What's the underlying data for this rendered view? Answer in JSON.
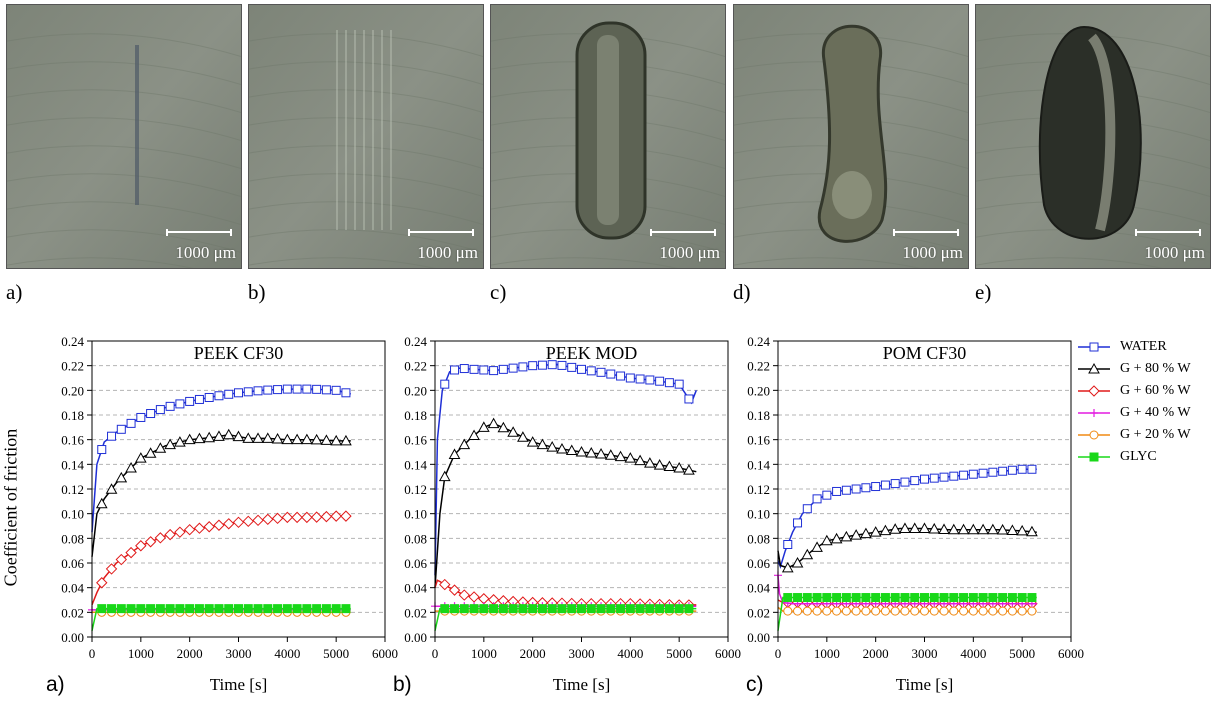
{
  "photos": [
    {
      "letter": "a)",
      "scale_label": "1000 μm",
      "mark": "scratch"
    },
    {
      "letter": "b)",
      "scale_label": "1000 μm",
      "mark": "faint"
    },
    {
      "letter": "c)",
      "scale_label": "1000 μm",
      "mark": "capsule"
    },
    {
      "letter": "d)",
      "scale_label": "1000 μm",
      "mark": "peanut"
    },
    {
      "letter": "e)",
      "scale_label": "1000 μm",
      "mark": "oval"
    }
  ],
  "y_axis_label": "Coefficient of friction",
  "legend": [
    {
      "name": "WATER",
      "color": "#1f2fd6",
      "marker": "square-open"
    },
    {
      "name": "G + 80 % W",
      "color": "#000000",
      "marker": "triangle-open"
    },
    {
      "name": "G + 60 % W",
      "color": "#e01a1a",
      "marker": "diamond-open"
    },
    {
      "name": "G + 40 % W",
      "color": "#e31ce0",
      "marker": "plus"
    },
    {
      "name": "G + 20 % W",
      "color": "#f08a14",
      "marker": "circle-open"
    },
    {
      "name": "GLYC",
      "color": "#18d818",
      "marker": "square-filled"
    }
  ],
  "chart_data": [
    {
      "type": "line",
      "letter": "a)",
      "title": "PEEK CF30",
      "xlabel": "Time [s]",
      "ylabel": "Coefficient of friction",
      "xlim": [
        0,
        6000
      ],
      "ylim": [
        0,
        0.24
      ],
      "xticks": [
        "0",
        "1000",
        "2000",
        "3000",
        "4000",
        "5000",
        "6000"
      ],
      "yticks": [
        "0.00",
        "0.02",
        "0.04",
        "0.06",
        "0.08",
        "0.10",
        "0.12",
        "0.14",
        "0.16",
        "0.18",
        "0.20",
        "0.22",
        "0.24"
      ],
      "grid": "horizontal dashed",
      "series": [
        {
          "name": "WATER",
          "x": [
            0,
            100,
            250,
            500,
            1000,
            1500,
            2000,
            2500,
            3000,
            3500,
            4000,
            4500,
            5000,
            5300
          ],
          "y": [
            0.085,
            0.14,
            0.158,
            0.166,
            0.178,
            0.186,
            0.191,
            0.195,
            0.198,
            0.2,
            0.201,
            0.201,
            0.2,
            0.197
          ]
        },
        {
          "name": "G + 80 % W",
          "x": [
            0,
            100,
            250,
            500,
            1000,
            1500,
            2000,
            2500,
            2800,
            3200,
            3600,
            4000,
            4500,
            5000,
            5300
          ],
          "y": [
            0.065,
            0.1,
            0.112,
            0.125,
            0.145,
            0.155,
            0.16,
            0.162,
            0.164,
            0.161,
            0.161,
            0.16,
            0.16,
            0.159,
            0.159
          ]
        },
        {
          "name": "G + 60 % W",
          "x": [
            0,
            100,
            250,
            500,
            1000,
            1500,
            2000,
            2500,
            3000,
            3500,
            4000,
            4500,
            5000,
            5300
          ],
          "y": [
            0.026,
            0.036,
            0.048,
            0.06,
            0.074,
            0.082,
            0.087,
            0.09,
            0.093,
            0.095,
            0.097,
            0.097,
            0.098,
            0.098
          ]
        },
        {
          "name": "G + 40 % W",
          "x": [
            0,
            200,
            1000,
            2000,
            3000,
            4000,
            5000,
            5300
          ],
          "y": [
            0.022,
            0.022,
            0.022,
            0.022,
            0.022,
            0.022,
            0.022,
            0.022
          ]
        },
        {
          "name": "G + 20 % W",
          "x": [
            0,
            200,
            1000,
            2000,
            3000,
            4000,
            5000,
            5300
          ],
          "y": [
            0.02,
            0.02,
            0.02,
            0.02,
            0.02,
            0.02,
            0.02,
            0.02
          ]
        },
        {
          "name": "GLYC",
          "x": [
            0,
            100,
            200,
            1000,
            2000,
            3000,
            4000,
            5000,
            5300
          ],
          "y": [
            0.005,
            0.023,
            0.023,
            0.023,
            0.023,
            0.023,
            0.023,
            0.023,
            0.023
          ]
        }
      ]
    },
    {
      "type": "line",
      "letter": "b)",
      "title": "PEEK MOD",
      "xlabel": "Time [s]",
      "ylabel": "",
      "xlim": [
        0,
        6000
      ],
      "ylim": [
        0,
        0.24
      ],
      "xticks": [
        "0",
        "1000",
        "2000",
        "3000",
        "4000",
        "5000",
        "6000"
      ],
      "yticks": [
        "0.00",
        "0.02",
        "0.04",
        "0.06",
        "0.08",
        "0.10",
        "0.12",
        "0.14",
        "0.16",
        "0.18",
        "0.20",
        "0.22",
        "0.24"
      ],
      "grid": "horizontal dashed",
      "series": [
        {
          "name": "WATER",
          "x": [
            0,
            50,
            150,
            300,
            500,
            800,
            1200,
            1600,
            2000,
            2500,
            3000,
            3500,
            4000,
            4500,
            5000,
            5250,
            5350
          ],
          "y": [
            0.05,
            0.16,
            0.2,
            0.215,
            0.218,
            0.217,
            0.216,
            0.218,
            0.22,
            0.221,
            0.217,
            0.214,
            0.21,
            0.208,
            0.205,
            0.19,
            0.2
          ]
        },
        {
          "name": "G + 80 % W",
          "x": [
            0,
            100,
            200,
            400,
            700,
            1000,
            1200,
            1500,
            2000,
            2500,
            3000,
            3500,
            4000,
            4500,
            5000,
            5350
          ],
          "y": [
            0.04,
            0.1,
            0.13,
            0.148,
            0.16,
            0.17,
            0.173,
            0.168,
            0.158,
            0.153,
            0.15,
            0.148,
            0.145,
            0.14,
            0.137,
            0.134
          ]
        },
        {
          "name": "G + 60 % W",
          "x": [
            0,
            50,
            100,
            300,
            600,
            1000,
            1500,
            2000,
            3000,
            4000,
            5000,
            5350
          ],
          "y": [
            0.04,
            0.046,
            0.045,
            0.04,
            0.034,
            0.031,
            0.029,
            0.028,
            0.027,
            0.027,
            0.026,
            0.026
          ]
        },
        {
          "name": "G + 40 % W",
          "x": [
            0,
            200,
            1000,
            2000,
            3000,
            4000,
            5000,
            5350
          ],
          "y": [
            0.025,
            0.025,
            0.025,
            0.025,
            0.025,
            0.025,
            0.025,
            0.025
          ]
        },
        {
          "name": "G + 20 % W",
          "x": [
            0,
            200,
            1000,
            2000,
            3000,
            4000,
            5000,
            5350
          ],
          "y": [
            0.021,
            0.021,
            0.021,
            0.021,
            0.021,
            0.021,
            0.021,
            0.021
          ]
        },
        {
          "name": "GLYC",
          "x": [
            0,
            100,
            200,
            1000,
            2000,
            3000,
            4000,
            5000,
            5350
          ],
          "y": [
            0.005,
            0.023,
            0.023,
            0.023,
            0.023,
            0.023,
            0.023,
            0.023,
            0.023
          ]
        }
      ]
    },
    {
      "type": "line",
      "letter": "c)",
      "title": "POM CF30",
      "xlabel": "Time [s]",
      "ylabel": "",
      "xlim": [
        0,
        6000
      ],
      "ylim": [
        0,
        0.24
      ],
      "xticks": [
        "0",
        "1000",
        "2000",
        "3000",
        "4000",
        "5000",
        "6000"
      ],
      "yticks": [
        "0.00",
        "0.02",
        "0.04",
        "0.06",
        "0.08",
        "0.10",
        "0.12",
        "0.14",
        "0.16",
        "0.18",
        "0.20",
        "0.22",
        "0.24"
      ],
      "grid": "horizontal dashed",
      "series": [
        {
          "name": "WATER",
          "x": [
            0,
            50,
            150,
            300,
            500,
            800,
            1200,
            1600,
            2000,
            2500,
            3000,
            3500,
            4000,
            4500,
            5000,
            5300
          ],
          "y": [
            0.062,
            0.057,
            0.07,
            0.085,
            0.1,
            0.112,
            0.118,
            0.12,
            0.122,
            0.125,
            0.128,
            0.13,
            0.132,
            0.134,
            0.136,
            0.136
          ]
        },
        {
          "name": "G + 80 % W",
          "x": [
            0,
            50,
            200,
            400,
            700,
            1000,
            1500,
            2000,
            2500,
            3000,
            3500,
            4000,
            4500,
            5000,
            5300
          ],
          "y": [
            0.07,
            0.058,
            0.056,
            0.06,
            0.07,
            0.078,
            0.082,
            0.085,
            0.088,
            0.088,
            0.087,
            0.087,
            0.087,
            0.086,
            0.085
          ]
        },
        {
          "name": "G + 60 % W",
          "x": [
            0,
            100,
            300,
            600,
            1000,
            2000,
            3000,
            4000,
            5000,
            5300
          ],
          "y": [
            0.03,
            0.028,
            0.028,
            0.028,
            0.027,
            0.027,
            0.027,
            0.027,
            0.027,
            0.027
          ]
        },
        {
          "name": "G + 40 % W",
          "x": [
            0,
            30,
            100,
            300,
            1000,
            2000,
            3000,
            4000,
            5000,
            5300
          ],
          "y": [
            0.05,
            0.035,
            0.028,
            0.027,
            0.027,
            0.027,
            0.027,
            0.027,
            0.027,
            0.027
          ]
        },
        {
          "name": "G + 20 % W",
          "x": [
            0,
            100,
            300,
            1000,
            2000,
            3000,
            4000,
            5000,
            5300
          ],
          "y": [
            0.024,
            0.021,
            0.021,
            0.021,
            0.021,
            0.021,
            0.021,
            0.021,
            0.021
          ]
        },
        {
          "name": "GLYC",
          "x": [
            0,
            100,
            200,
            1000,
            2000,
            3000,
            4000,
            5000,
            5300
          ],
          "y": [
            0.005,
            0.032,
            0.032,
            0.032,
            0.032,
            0.032,
            0.032,
            0.032,
            0.032
          ]
        }
      ]
    }
  ]
}
